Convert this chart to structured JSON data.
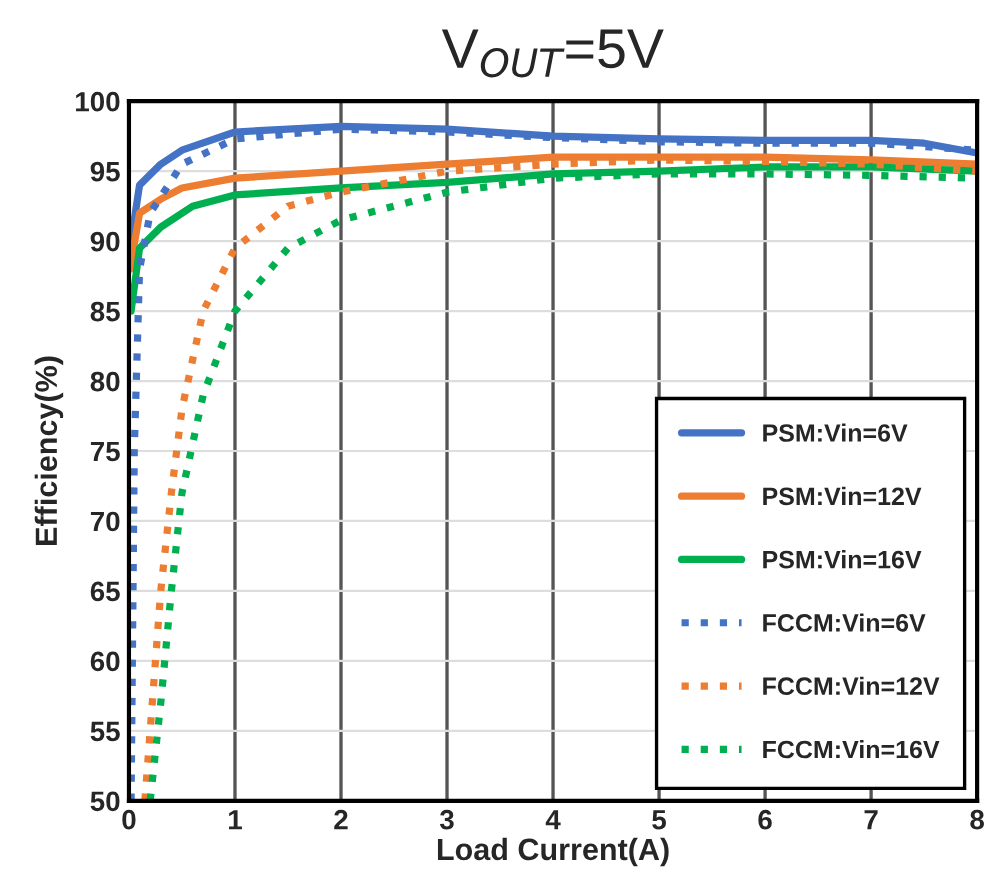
{
  "chart_data": {
    "type": "line",
    "title": "V$_{OUT}$=5V",
    "xlabel": "Load Current(A)",
    "ylabel": "Efficiency(%)",
    "xlim": [
      0,
      8
    ],
    "xticks": [
      0,
      1,
      2,
      3,
      4,
      5,
      6,
      7,
      8
    ],
    "ylim": [
      50,
      100
    ],
    "yticks": [
      50,
      55,
      60,
      65,
      70,
      75,
      80,
      85,
      90,
      95,
      100
    ],
    "grid": true,
    "legend": "bottom right",
    "marker": "none",
    "series": [
      {
        "name": "PSM:Vin=6V",
        "color": "#4472c4",
        "line_style": "solid",
        "x": [
          0.02,
          0.1,
          0.3,
          0.5,
          1,
          2,
          3,
          4,
          5,
          6,
          7,
          7.5,
          8
        ],
        "values": [
          90,
          94,
          95.5,
          96.5,
          97.8,
          98.2,
          98,
          97.5,
          97.3,
          97.2,
          97.2,
          97,
          96.3
        ]
      },
      {
        "name": "PSM:Vin=12V",
        "color": "#ed7d31",
        "line_style": "solid",
        "x": [
          0.01,
          0.1,
          0.3,
          0.5,
          1,
          2,
          3,
          4,
          5,
          6,
          7,
          8
        ],
        "values": [
          88,
          92,
          93,
          93.8,
          94.5,
          95,
          95.5,
          96,
          96,
          96,
          95.8,
          95.5
        ]
      },
      {
        "name": "PSM:Vin=16V",
        "color": "#00b050",
        "line_style": "solid",
        "x": [
          0.02,
          0.1,
          0.3,
          0.6,
          1,
          2,
          3,
          4,
          5,
          6,
          7,
          8
        ],
        "values": [
          85,
          89.5,
          91,
          92.5,
          93.3,
          93.8,
          94.2,
          94.8,
          95,
          95.3,
          95.3,
          95
        ]
      },
      {
        "name": "FCCM:Vin=6V",
        "color": "#4472c4",
        "line_style": "dotted",
        "x": [
          0.02,
          0.05,
          0.1,
          0.2,
          0.5,
          1,
          2,
          3,
          4,
          5,
          6,
          7,
          8
        ],
        "values": [
          50,
          75,
          88,
          92,
          95.5,
          97.3,
          98,
          97.8,
          97.4,
          97.1,
          97,
          97,
          96.5
        ]
      },
      {
        "name": "FCCM:Vin=12V",
        "color": "#ed7d31",
        "line_style": "dotted",
        "x": [
          0.15,
          0.2,
          0.3,
          0.4,
          0.5,
          0.7,
          1,
          1.5,
          2,
          3,
          4,
          5,
          6,
          7,
          8
        ],
        "values": [
          50,
          55,
          65,
          72,
          78,
          85,
          89.5,
          92.5,
          93.5,
          95,
          95.5,
          95.8,
          95.7,
          95.5,
          95
        ]
      },
      {
        "name": "FCCM:Vin=16V",
        "color": "#00b050",
        "line_style": "dotted",
        "x": [
          0.2,
          0.3,
          0.4,
          0.5,
          0.7,
          1,
          1.5,
          2,
          3,
          4,
          5,
          6,
          7,
          8
        ],
        "values": [
          50,
          57,
          65,
          72,
          79,
          85,
          89.5,
          91.5,
          93.5,
          94.5,
          94.8,
          94.8,
          94.7,
          94.5
        ]
      }
    ]
  }
}
